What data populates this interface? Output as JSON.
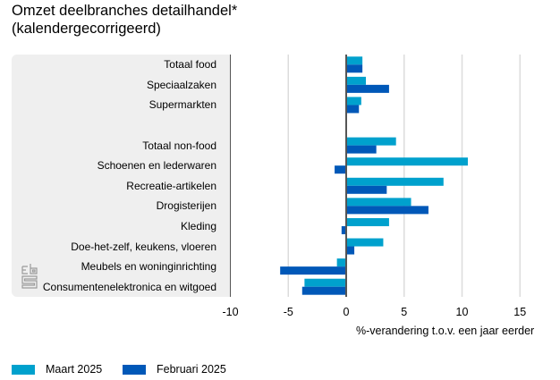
{
  "chart_data": {
    "type": "bar",
    "orientation": "horizontal",
    "title": "Omzet deelbranches detailhandel*",
    "subtitle": "(kalendergecorrigeerd)",
    "xlabel": "%-verandering t.o.v. een jaar eerder",
    "ylabel": "",
    "xlim": [
      -10,
      17
    ],
    "xticks": [
      -10,
      -5,
      0,
      5,
      10,
      15
    ],
    "grid": true,
    "legend_position": "bottom-left",
    "categories": [
      "Totaal food",
      "Speciaalzaken",
      "Supermarkten",
      "",
      "Totaal non-food",
      "Schoenen en lederwaren",
      "Recreatie-artikelen",
      "Drogisterijen",
      "Kleding",
      "Doe-het-zelf, keukens, vloeren",
      "Meubels en woninginrichting",
      "Consumentenelektronica en witgoed"
    ],
    "series": [
      {
        "name": "Maart 2025",
        "color": "#00a1cd",
        "values": [
          1.4,
          1.7,
          1.3,
          null,
          4.3,
          10.5,
          8.4,
          5.6,
          3.7,
          3.2,
          -0.8,
          -3.6
        ]
      },
      {
        "name": "Februari 2025",
        "color": "#0058b8",
        "values": [
          1.4,
          3.7,
          1.1,
          null,
          2.6,
          -1.0,
          3.5,
          7.1,
          -0.4,
          0.7,
          -5.7,
          -3.8
        ]
      }
    ]
  },
  "logo": {
    "name": "cbs"
  }
}
